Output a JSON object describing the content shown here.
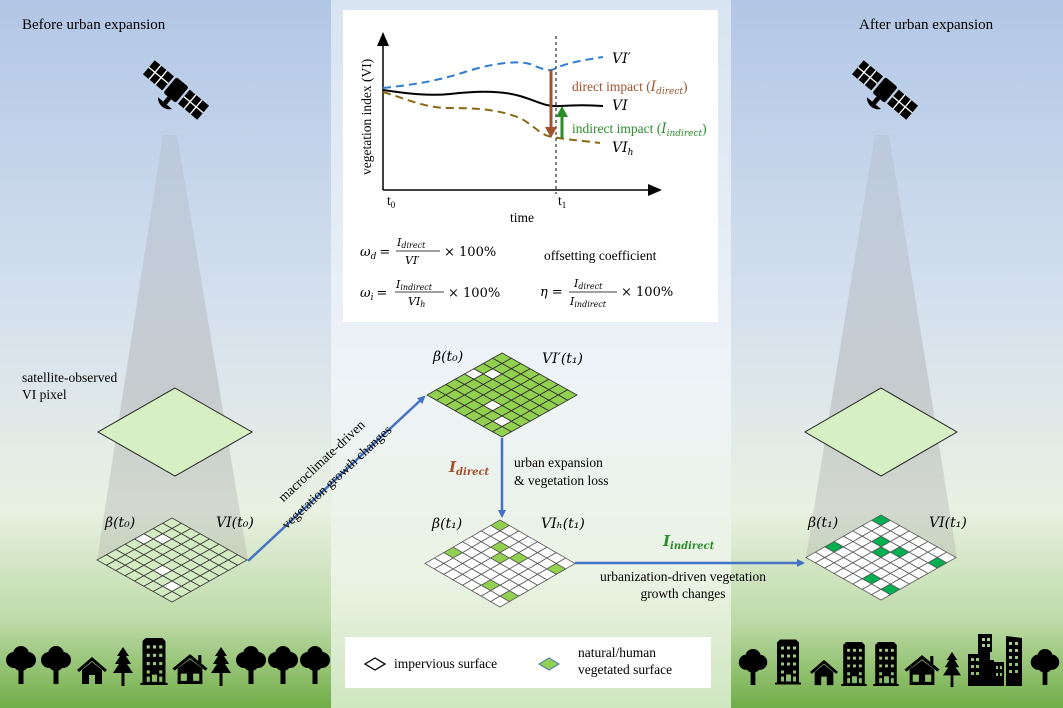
{
  "titles": {
    "before": "Before urban expansion",
    "after": "After urban expansion"
  },
  "pixel_label": {
    "line1": "satellite-observed",
    "line2": "VI pixel"
  },
  "chart": {
    "ylabel": "vegetation index (VI)",
    "xlabel": "time",
    "t0": "t",
    "t0_sub": "0",
    "t1": "t",
    "t1_sub": "1",
    "vi_prime": "VI′",
    "vi": "VI",
    "vi_h": "VI",
    "vi_h_sub": "h",
    "direct_label": "direct impact (",
    "direct_sym": "I",
    "direct_sub": "direct",
    "close": ")",
    "indirect_label": "indirect impact (",
    "indirect_sym": "I",
    "indirect_sub": "indirect",
    "colors": {
      "vi_prime": "#2e7dd1",
      "vi": "#000000",
      "vi_h": "#8b6914",
      "direct": "#a0522d",
      "indirect": "#2a8c2a"
    }
  },
  "formulas": {
    "wd_lhs": "ω",
    "wd_sub": "d",
    "eq": "=",
    "num_d": "I",
    "num_d_sub": "direct",
    "den_d": "VI′",
    "times": "× 100%",
    "wi_lhs": "ω",
    "wi_sub": "i",
    "num_i": "I",
    "num_i_sub": "indirect",
    "den_i": "VI",
    "den_i_sub": "h",
    "offset_title": "offsetting coefficient",
    "eta": "η",
    "eta_num": "I",
    "eta_num_sub": "direct",
    "eta_den": "I",
    "eta_den_sub": "indirect"
  },
  "grid_labels": {
    "left_beta": "β(t₀)",
    "left_vi": "VI(t₀)",
    "top_beta": "β(t₀)",
    "top_vi": "VI′(t₁)",
    "mid_beta": "β(t₁)",
    "mid_vi": "VIₕ(t₁)",
    "right_beta": "β(t₁)",
    "right_vi": "VI(t₁)"
  },
  "arrows": {
    "macro_line1": "macroclimate-driven",
    "macro_line2": "vegetation growth changes",
    "direct_sym": "I",
    "direct_sub": "direct",
    "urban_line1": "urban expansion",
    "urban_line2": "& vegetation loss",
    "indirect_sym": "I",
    "indirect_sub": "indirect",
    "urbanization_line1": "urbanization-driven  vegetation",
    "urbanization_line2": "growth changes"
  },
  "legend": {
    "impervious": "impervious  surface",
    "vegetated_line1": "natural/human",
    "vegetated_line2": "vegetated surface"
  }
}
